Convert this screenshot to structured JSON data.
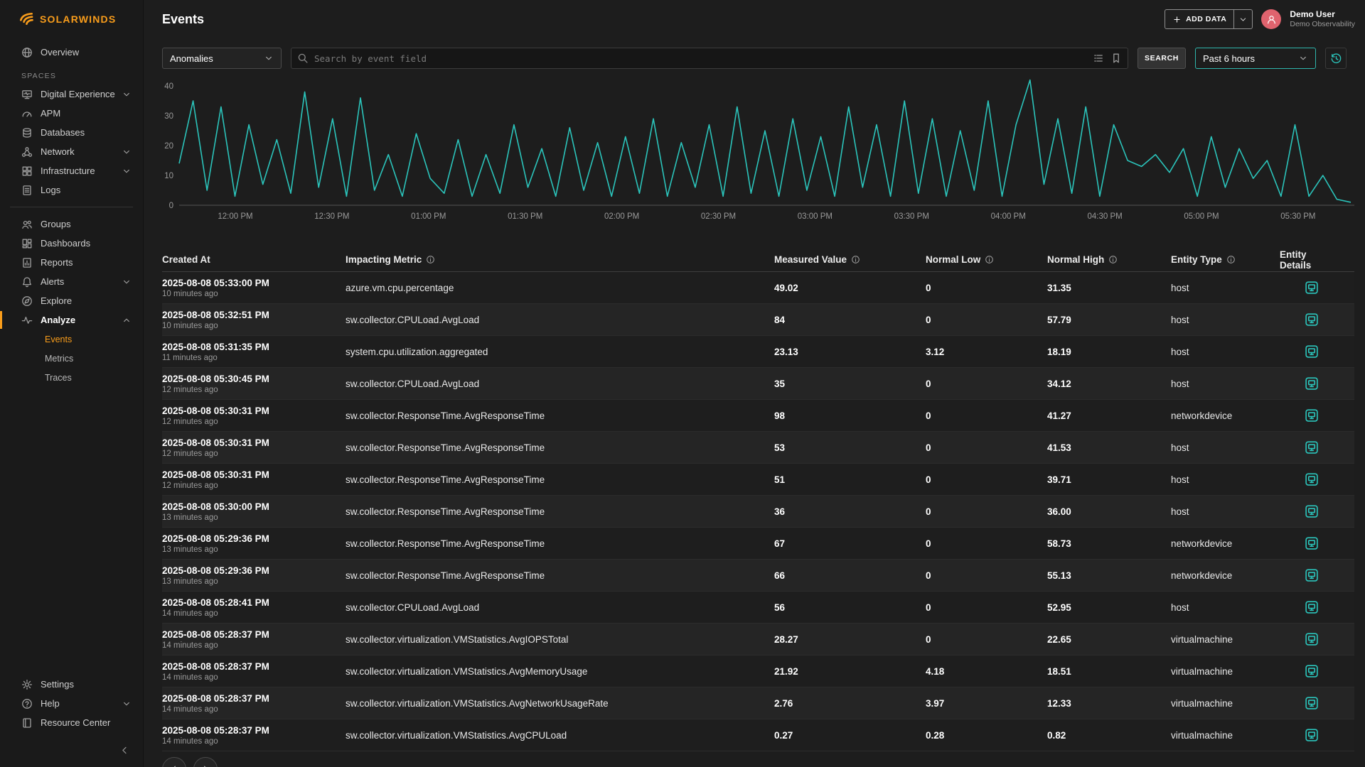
{
  "brand": {
    "name": "SOLARWINDS"
  },
  "colors": {
    "accent_teal": "#2bc4bb",
    "brand_orange": "#f99d1b",
    "avatar_pink": "#e0636e"
  },
  "header": {
    "title": "Events",
    "add_data_label": "ADD DATA",
    "user": {
      "name": "Demo User",
      "org": "Demo Observability"
    }
  },
  "sidebar": {
    "spaces_label": "SPACES",
    "primary": [
      {
        "label": "Overview",
        "icon": "globe"
      }
    ],
    "spaces": [
      {
        "label": "Digital Experience",
        "icon": "screen-pulse",
        "chevron": "down"
      },
      {
        "label": "APM",
        "icon": "gauge"
      },
      {
        "label": "Databases",
        "icon": "database"
      },
      {
        "label": "Network",
        "icon": "network",
        "chevron": "down"
      },
      {
        "label": "Infrastructure",
        "icon": "grid",
        "chevron": "down"
      },
      {
        "label": "Logs",
        "icon": "document"
      }
    ],
    "tools": [
      {
        "label": "Groups",
        "icon": "people"
      },
      {
        "label": "Dashboards",
        "icon": "dashboard"
      },
      {
        "label": "Reports",
        "icon": "report"
      },
      {
        "label": "Alerts",
        "icon": "bell",
        "chevron": "down"
      },
      {
        "label": "Explore",
        "icon": "compass"
      },
      {
        "label": "Analyze",
        "icon": "pulse",
        "chevron": "up",
        "active": true,
        "children": [
          {
            "label": "Events",
            "active": true
          },
          {
            "label": "Metrics"
          },
          {
            "label": "Traces"
          }
        ]
      }
    ],
    "bottom": [
      {
        "label": "Settings",
        "icon": "gear"
      },
      {
        "label": "Help",
        "icon": "question",
        "chevron": "down"
      },
      {
        "label": "Resource Center",
        "icon": "book"
      }
    ]
  },
  "filter_bar": {
    "type_value": "Anomalies",
    "search_placeholder": "Search by event field",
    "search_button": "SEARCH",
    "time_range": "Past 6 hours"
  },
  "chart_data": {
    "type": "line",
    "title": "",
    "grid": false,
    "legend": false,
    "ylim": [
      0,
      45
    ],
    "y_ticks": [
      0,
      10,
      20,
      30,
      40
    ],
    "x_tick_labels": [
      "12:00 PM",
      "12:30 PM",
      "01:00 PM",
      "01:30 PM",
      "02:00 PM",
      "02:30 PM",
      "03:00 PM",
      "03:30 PM",
      "04:00 PM",
      "04:30 PM",
      "05:00 PM",
      "05:30 PM"
    ],
    "series": [
      {
        "name": "Anomalies",
        "color": "#2bc4bb",
        "values": [
          14,
          35,
          5,
          33,
          3,
          27,
          7,
          22,
          4,
          38,
          6,
          29,
          3,
          36,
          5,
          17,
          3,
          24,
          9,
          4,
          22,
          3,
          17,
          4,
          27,
          6,
          19,
          3,
          26,
          5,
          21,
          3,
          23,
          4,
          29,
          3,
          21,
          6,
          27,
          3,
          33,
          4,
          25,
          3,
          29,
          5,
          23,
          3,
          33,
          6,
          27,
          3,
          35,
          4,
          29,
          3,
          25,
          5,
          35,
          3,
          27,
          42,
          7,
          29,
          4,
          33,
          3,
          27,
          15,
          13,
          17,
          11,
          19,
          3,
          23,
          6,
          19,
          9,
          15,
          3,
          27,
          3,
          10,
          2,
          1
        ]
      }
    ]
  },
  "table": {
    "columns": [
      {
        "label": "Created At",
        "info": false
      },
      {
        "label": "Impacting Metric",
        "info": true
      },
      {
        "label": "Measured Value",
        "info": true
      },
      {
        "label": "Normal Low",
        "info": true
      },
      {
        "label": "Normal High",
        "info": true
      },
      {
        "label": "Entity Type",
        "info": true
      },
      {
        "label": "Entity Details",
        "info": false
      }
    ],
    "rows": [
      {
        "created_at": "2025-08-08 05:33:00 PM",
        "ago": "10 minutes ago",
        "metric": "azure.vm.cpu.percentage",
        "measured": "49.02",
        "low": "0",
        "high": "31.35",
        "entity_type": "host"
      },
      {
        "created_at": "2025-08-08 05:32:51 PM",
        "ago": "10 minutes ago",
        "metric": "sw.collector.CPULoad.AvgLoad",
        "measured": "84",
        "low": "0",
        "high": "57.79",
        "entity_type": "host"
      },
      {
        "created_at": "2025-08-08 05:31:35 PM",
        "ago": "11 minutes ago",
        "metric": "system.cpu.utilization.aggregated",
        "measured": "23.13",
        "low": "3.12",
        "high": "18.19",
        "entity_type": "host"
      },
      {
        "created_at": "2025-08-08 05:30:45 PM",
        "ago": "12 minutes ago",
        "metric": "sw.collector.CPULoad.AvgLoad",
        "measured": "35",
        "low": "0",
        "high": "34.12",
        "entity_type": "host"
      },
      {
        "created_at": "2025-08-08 05:30:31 PM",
        "ago": "12 minutes ago",
        "metric": "sw.collector.ResponseTime.AvgResponseTime",
        "measured": "98",
        "low": "0",
        "high": "41.27",
        "entity_type": "networkdevice"
      },
      {
        "created_at": "2025-08-08 05:30:31 PM",
        "ago": "12 minutes ago",
        "metric": "sw.collector.ResponseTime.AvgResponseTime",
        "measured": "53",
        "low": "0",
        "high": "41.53",
        "entity_type": "host"
      },
      {
        "created_at": "2025-08-08 05:30:31 PM",
        "ago": "12 minutes ago",
        "metric": "sw.collector.ResponseTime.AvgResponseTime",
        "measured": "51",
        "low": "0",
        "high": "39.71",
        "entity_type": "host"
      },
      {
        "created_at": "2025-08-08 05:30:00 PM",
        "ago": "13 minutes ago",
        "metric": "sw.collector.ResponseTime.AvgResponseTime",
        "measured": "36",
        "low": "0",
        "high": "36.00",
        "entity_type": "host"
      },
      {
        "created_at": "2025-08-08 05:29:36 PM",
        "ago": "13 minutes ago",
        "metric": "sw.collector.ResponseTime.AvgResponseTime",
        "measured": "67",
        "low": "0",
        "high": "58.73",
        "entity_type": "networkdevice"
      },
      {
        "created_at": "2025-08-08 05:29:36 PM",
        "ago": "13 minutes ago",
        "metric": "sw.collector.ResponseTime.AvgResponseTime",
        "measured": "66",
        "low": "0",
        "high": "55.13",
        "entity_type": "networkdevice"
      },
      {
        "created_at": "2025-08-08 05:28:41 PM",
        "ago": "14 minutes ago",
        "metric": "sw.collector.CPULoad.AvgLoad",
        "measured": "56",
        "low": "0",
        "high": "52.95",
        "entity_type": "host"
      },
      {
        "created_at": "2025-08-08 05:28:37 PM",
        "ago": "14 minutes ago",
        "metric": "sw.collector.virtualization.VMStatistics.AvgIOPSTotal",
        "measured": "28.27",
        "low": "0",
        "high": "22.65",
        "entity_type": "virtualmachine"
      },
      {
        "created_at": "2025-08-08 05:28:37 PM",
        "ago": "14 minutes ago",
        "metric": "sw.collector.virtualization.VMStatistics.AvgMemoryUsage",
        "measured": "21.92",
        "low": "4.18",
        "high": "18.51",
        "entity_type": "virtualmachine"
      },
      {
        "created_at": "2025-08-08 05:28:37 PM",
        "ago": "14 minutes ago",
        "metric": "sw.collector.virtualization.VMStatistics.AvgNetworkUsageRate",
        "measured": "2.76",
        "low": "3.97",
        "high": "12.33",
        "entity_type": "virtualmachine"
      },
      {
        "created_at": "2025-08-08 05:28:37 PM",
        "ago": "14 minutes ago",
        "metric": "sw.collector.virtualization.VMStatistics.AvgCPULoad",
        "measured": "0.27",
        "low": "0.28",
        "high": "0.82",
        "entity_type": "virtualmachine"
      }
    ]
  }
}
